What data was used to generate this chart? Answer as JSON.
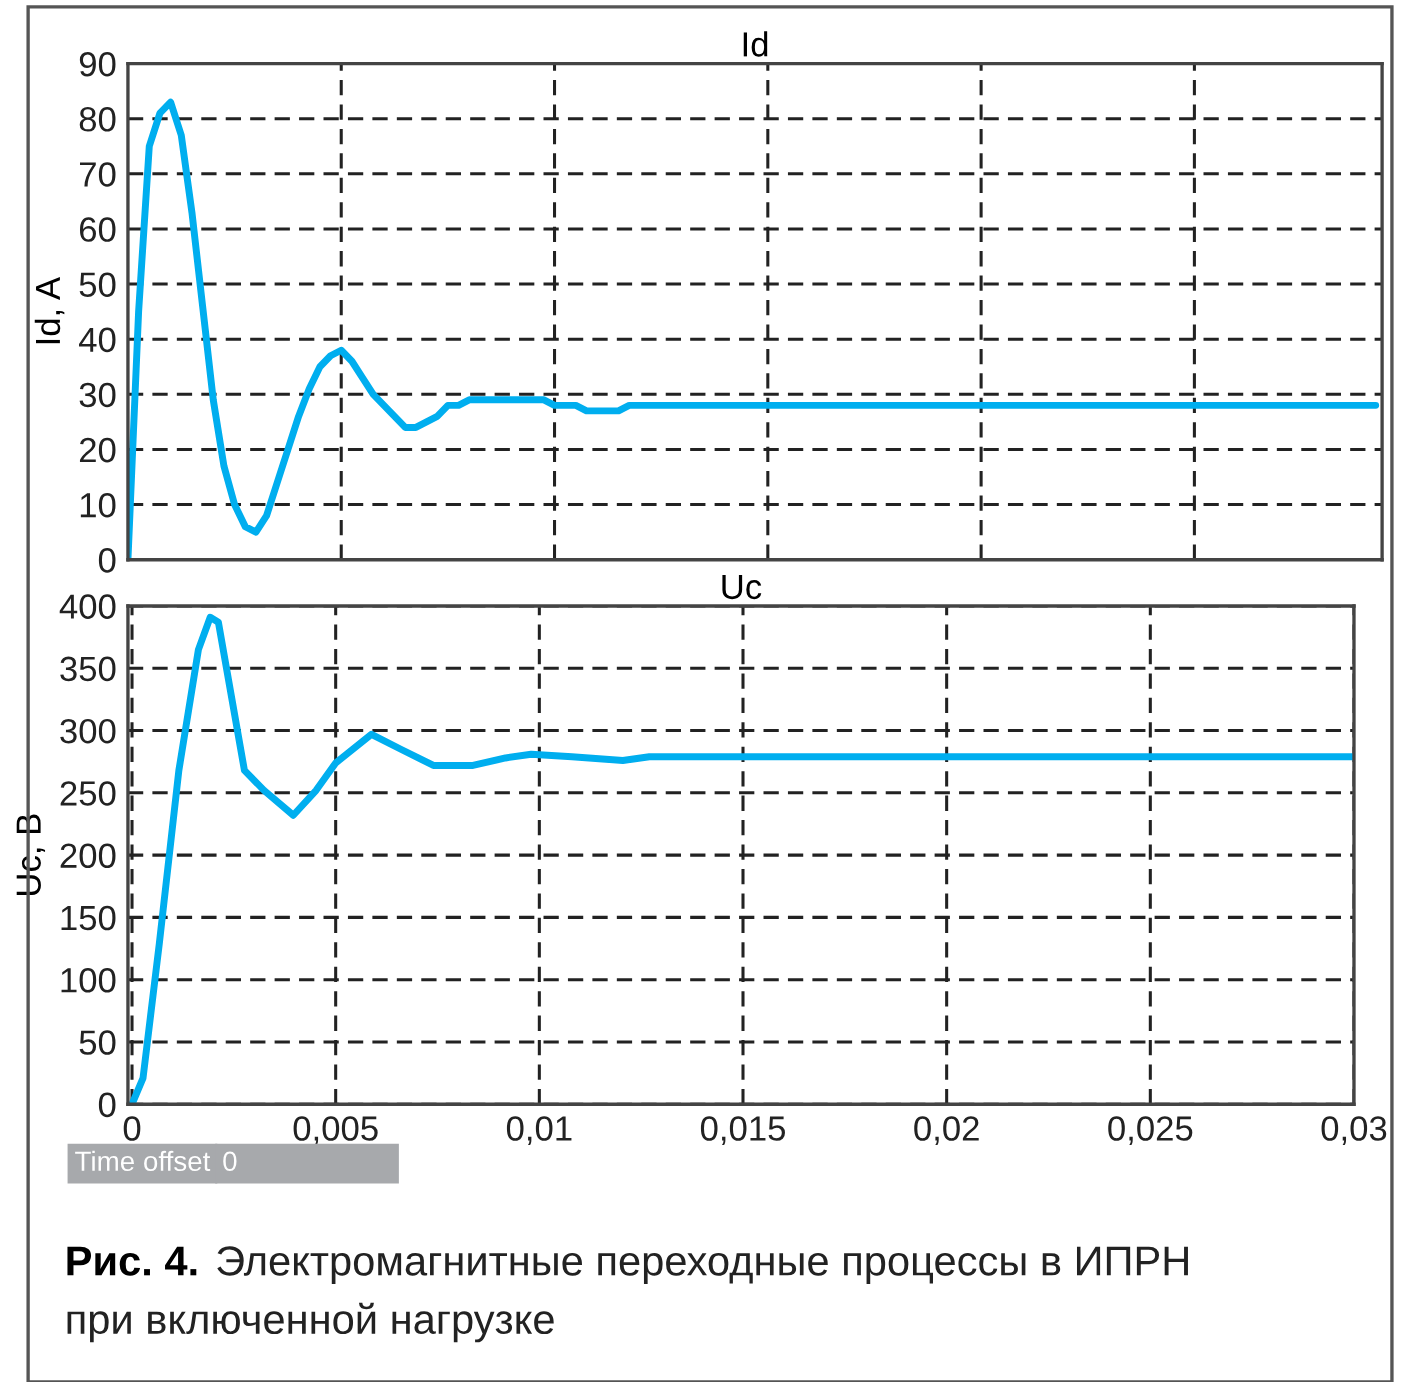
{
  "chart_data": [
    {
      "type": "line",
      "title": "Id",
      "ylabel": "Id, A",
      "ylim": [
        0,
        90
      ],
      "yticks": [
        0,
        10,
        20,
        30,
        40,
        50,
        60,
        70,
        80,
        90
      ],
      "grid": true,
      "tick_labels": "y",
      "line_style": "solid",
      "marker": "none",
      "categories": [
        null,
        null,
        null,
        null,
        null,
        null,
        null,
        null,
        null,
        null,
        null,
        null,
        null,
        null,
        null,
        null,
        null,
        null,
        null,
        null,
        null,
        null,
        null,
        null,
        null,
        null,
        null,
        null,
        null,
        null,
        null,
        null,
        null,
        null,
        null,
        null,
        null,
        null,
        null,
        null,
        null,
        null,
        null,
        null,
        null,
        null,
        null,
        null,
        null,
        null,
        null,
        null,
        null,
        null,
        null,
        null,
        null,
        null,
        null,
        null,
        null,
        null,
        null,
        null,
        null,
        null,
        null,
        null,
        null,
        null,
        null,
        null,
        null,
        null,
        null,
        null,
        null,
        null,
        null,
        null,
        null,
        null,
        null,
        null,
        null,
        null,
        null,
        null,
        null,
        null,
        null,
        null,
        null,
        null,
        null,
        null,
        null,
        null,
        null,
        null,
        null,
        null,
        null,
        null,
        null,
        null,
        null,
        null,
        null,
        null,
        null,
        null,
        null,
        null,
        null,
        null,
        null,
        null
      ],
      "series": [
        {
          "color": "#00aeef",
          "values": [
            0,
            45,
            75,
            81,
            83,
            77,
            63,
            46,
            29,
            17,
            10,
            6,
            5,
            8,
            14,
            20,
            26,
            31,
            35,
            37,
            38,
            36,
            33,
            30,
            28,
            26,
            24,
            24,
            25,
            26,
            28,
            28,
            29,
            29,
            29,
            29,
            29,
            29,
            29,
            29,
            28,
            28,
            28,
            27,
            27,
            27,
            27,
            28,
            28,
            28,
            28,
            28,
            28,
            28,
            28,
            28,
            28,
            28,
            28,
            28,
            28,
            28,
            28,
            28,
            28,
            28,
            28,
            28,
            28,
            28,
            28,
            28,
            28,
            28,
            28,
            28,
            28,
            28,
            28,
            28,
            28,
            28,
            28,
            28,
            28,
            28,
            28,
            28,
            28,
            28,
            28,
            28,
            28,
            28,
            28,
            28,
            28,
            28,
            28,
            28,
            28,
            28,
            28,
            28,
            28,
            28,
            28,
            28,
            28,
            28,
            28,
            28,
            28,
            28,
            28,
            28,
            28,
            28
          ]
        }
      ]
    },
    {
      "type": "line",
      "title": "Uc",
      "ylabel": "Uc, B",
      "xlim": [
        -0.0001,
        0.03
      ],
      "xticks": [
        {
          "value": 0,
          "label": "0"
        },
        {
          "value": 0.005,
          "label": "0,005"
        },
        {
          "value": 0.01,
          "label": "0,01"
        },
        {
          "value": 0.015,
          "label": "0,015"
        },
        {
          "value": 0.02,
          "label": "0,02"
        },
        {
          "value": 0.025,
          "label": "0,025"
        },
        {
          "value": 0.03,
          "label": "0,03"
        }
      ],
      "ylim": [
        0,
        400
      ],
      "yticks": [
        0,
        50,
        100,
        150,
        200,
        250,
        300,
        350,
        400
      ],
      "grid": true,
      "line_style": "solid",
      "marker": "none",
      "series": [
        {
          "color": "#00aeef",
          "x": [
            0,
            0.00027,
            0.00067,
            0.00115,
            0.00163,
            0.00192,
            0.00212,
            0.00276,
            0.00324,
            0.00396,
            0.00452,
            0.005,
            0.00588,
            0.0066,
            0.0074,
            0.00837,
            0.00917,
            0.0098,
            0.0108,
            0.01205,
            0.0127,
            0.03
          ],
          "values": [
            0,
            21,
            129,
            268,
            365,
            391,
            387,
            268,
            252,
            232,
            252,
            274,
            297,
            285,
            272,
            272,
            278,
            281,
            279,
            276,
            279,
            279
          ]
        }
      ],
      "annotations": [
        "Time offset",
        "0",
        "Рис. 4.",
        "Электромагнитные переходные процессы в ИПРН",
        "при включенной нагрузке"
      ]
    }
  ]
}
